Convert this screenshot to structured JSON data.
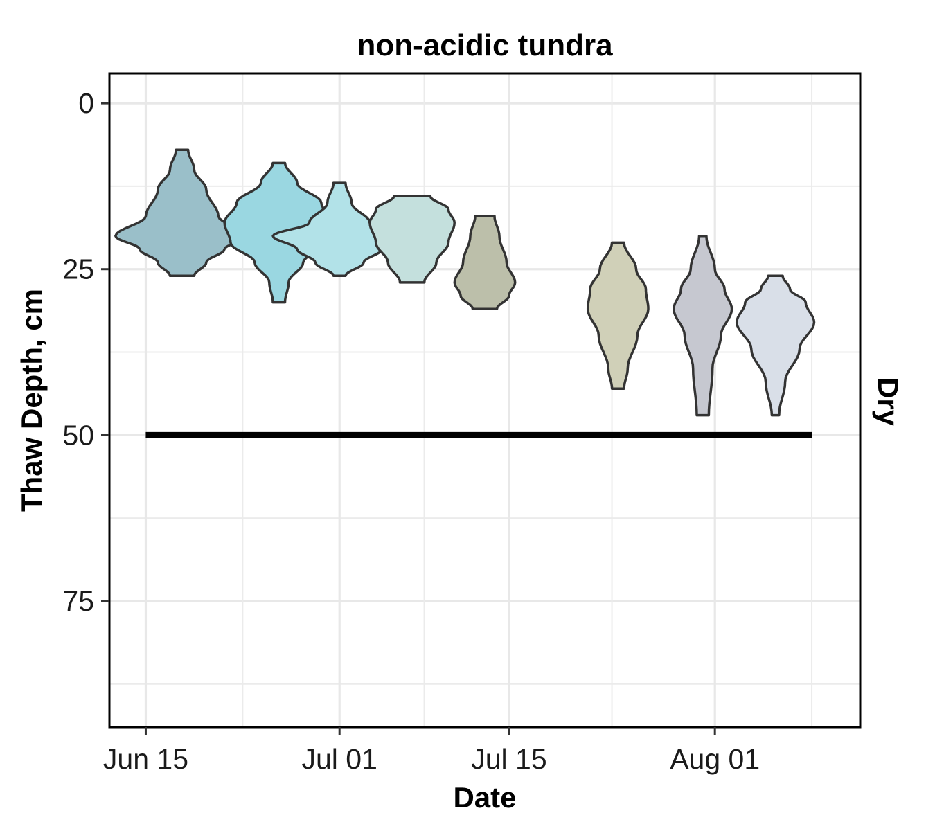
{
  "chart_data": {
    "type": "violin",
    "title": "non-acidic tundra",
    "xlabel": "Date",
    "ylabel": "Thaw Depth, cm",
    "facet_label": "Dry",
    "y_reversed": true,
    "ylim": [
      -4.5,
      94
    ],
    "y_ticks": [
      0,
      25,
      50,
      75
    ],
    "x_ticks": [
      {
        "date": "2019-06-15",
        "label": "Jun 15"
      },
      {
        "date": "2019-07-01",
        "label": "Jul 01"
      },
      {
        "date": "2019-07-15",
        "label": "Jul 15"
      },
      {
        "date": "2019-08-01",
        "label": "Aug 01"
      }
    ],
    "xlim": [
      "2019-06-12",
      "2019-08-13"
    ],
    "grid": true,
    "reference_line": {
      "y": 50,
      "x_start": "2019-06-15",
      "x_end": "2019-08-09"
    },
    "violins": [
      {
        "date": "2019-06-18",
        "fill": "#9ABFC9",
        "profile": [
          [
            7,
            0.5
          ],
          [
            10,
            1
          ],
          [
            13,
            2
          ],
          [
            17,
            3
          ],
          [
            20,
            5.5
          ],
          [
            22,
            3.5
          ],
          [
            24,
            2
          ],
          [
            26,
            1
          ]
        ]
      },
      {
        "date": "2019-06-26",
        "fill": "#9AD7E1",
        "profile": [
          [
            9,
            0.5
          ],
          [
            12,
            1.5
          ],
          [
            15,
            3.5
          ],
          [
            18,
            4.5
          ],
          [
            21,
            4
          ],
          [
            24,
            2
          ],
          [
            27,
            0.8
          ],
          [
            30,
            0.5
          ]
        ]
      },
      {
        "date": "2019-07-01",
        "fill": "#B2E2E8",
        "profile": [
          [
            12,
            0.5
          ],
          [
            15,
            1
          ],
          [
            18,
            2.5
          ],
          [
            20,
            5.5
          ],
          [
            22,
            3.5
          ],
          [
            24,
            2
          ],
          [
            26,
            0.5
          ]
        ]
      },
      {
        "date": "2019-07-07",
        "fill": "#C4E0DD",
        "profile": [
          [
            14,
            1.5
          ],
          [
            16,
            3
          ],
          [
            18,
            3.5
          ],
          [
            21,
            3
          ],
          [
            24,
            2
          ],
          [
            27,
            1
          ]
        ]
      },
      {
        "date": "2019-07-13",
        "fill": "#BCBFAA",
        "profile": [
          [
            17,
            0.8
          ],
          [
            20,
            1.2
          ],
          [
            24,
            1.8
          ],
          [
            27,
            2.5
          ],
          [
            29,
            2
          ],
          [
            31,
            1
          ]
        ]
      },
      {
        "date": "2019-07-24",
        "fill": "#D0D0B8",
        "profile": [
          [
            21,
            0.5
          ],
          [
            25,
            1.5
          ],
          [
            28,
            2.3
          ],
          [
            31,
            2.5
          ],
          [
            35,
            1.6
          ],
          [
            40,
            0.8
          ],
          [
            43,
            0.5
          ]
        ]
      },
      {
        "date": "2019-07-31",
        "fill": "#C6C8D0",
        "profile": [
          [
            20,
            0.3
          ],
          [
            25,
            1
          ],
          [
            28,
            1.8
          ],
          [
            31,
            2.4
          ],
          [
            35,
            1.5
          ],
          [
            40,
            0.8
          ],
          [
            47,
            0.5
          ]
        ]
      },
      {
        "date": "2019-08-06",
        "fill": "#D9DFE8",
        "profile": [
          [
            26,
            0.6
          ],
          [
            28,
            1.2
          ],
          [
            30,
            2.5
          ],
          [
            33,
            3.2
          ],
          [
            37,
            2
          ],
          [
            42,
            0.8
          ],
          [
            47,
            0.3
          ]
        ]
      }
    ]
  }
}
